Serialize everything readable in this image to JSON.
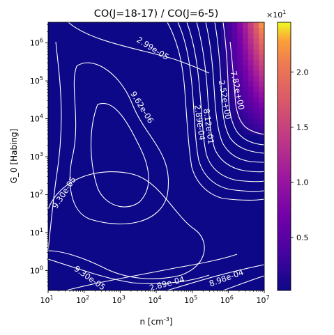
{
  "chart_data": {
    "type": "heatmap",
    "title": "CO(J=18-17) / CO(J=6-5)",
    "xlabel": "n [cm$^{-3}$]",
    "ylabel": "$G_0$ [Habing]",
    "xscale": "log",
    "yscale": "log",
    "xlim": [
      10,
      10000000
    ],
    "ylim": [
      0.3,
      3500000
    ],
    "xticks": [
      {
        "value": 10,
        "base": "10",
        "exp": "1"
      },
      {
        "value": 100,
        "base": "10",
        "exp": "2"
      },
      {
        "value": 1000,
        "base": "10",
        "exp": "3"
      },
      {
        "value": 10000,
        "base": "10",
        "exp": "4"
      },
      {
        "value": 100000,
        "base": "10",
        "exp": "5"
      },
      {
        "value": 1000000,
        "base": "10",
        "exp": "6"
      },
      {
        "value": 10000000,
        "base": "10",
        "exp": "7"
      }
    ],
    "yticks": [
      {
        "value": 1,
        "base": "10",
        "exp": "0"
      },
      {
        "value": 10,
        "base": "10",
        "exp": "1"
      },
      {
        "value": 100,
        "base": "10",
        "exp": "2"
      },
      {
        "value": 1000,
        "base": "10",
        "exp": "3"
      },
      {
        "value": 10000,
        "base": "10",
        "exp": "4"
      },
      {
        "value": 100000,
        "base": "10",
        "exp": "5"
      },
      {
        "value": 1000000,
        "base": "10",
        "exp": "6"
      }
    ],
    "colorbar": {
      "colormap": "plasma",
      "range": [
        0.02,
        2.45
      ],
      "ticks": [
        "0.5",
        "1.0",
        "1.5",
        "2.0"
      ],
      "tick_values": [
        0.5,
        1.0,
        1.5,
        2.0
      ],
      "multiplier_base": "×10",
      "multiplier_exp": "1"
    },
    "hotspot": {
      "log_n_peak": 7.0,
      "log_g0_peak": 6.55,
      "peak": 2.45
    },
    "contour_labels": [
      {
        "text": "2.99e-05",
        "log_n": 3.9,
        "log_g0": 5.85,
        "angle": 32
      },
      {
        "text": "9.62e-06",
        "log_n": 3.6,
        "log_g0": 4.3,
        "angle": 58
      },
      {
        "text": "7.82e+00",
        "log_n": 6.25,
        "log_g0": 4.75,
        "angle": 78
      },
      {
        "text": "2.52e+00",
        "log_n": 5.9,
        "log_g0": 4.5,
        "angle": 80
      },
      {
        "text": "2.89e-04",
        "log_n": 5.2,
        "log_g0": 3.9,
        "angle": 82
      },
      {
        "text": "8.12e-01",
        "log_n": 5.45,
        "log_g0": 3.8,
        "angle": 82
      },
      {
        "text": "9.30e-05",
        "log_n": 1.45,
        "log_g0": 2.05,
        "angle": -57
      },
      {
        "text": "9.30e-05",
        "log_n": 2.15,
        "log_g0": -0.2,
        "angle": 35
      },
      {
        "text": "2.89e-04",
        "log_n": 4.3,
        "log_g0": -0.35,
        "angle": -15
      },
      {
        "text": "8.98e-04",
        "log_n": 5.95,
        "log_g0": -0.2,
        "angle": -20
      }
    ]
  }
}
